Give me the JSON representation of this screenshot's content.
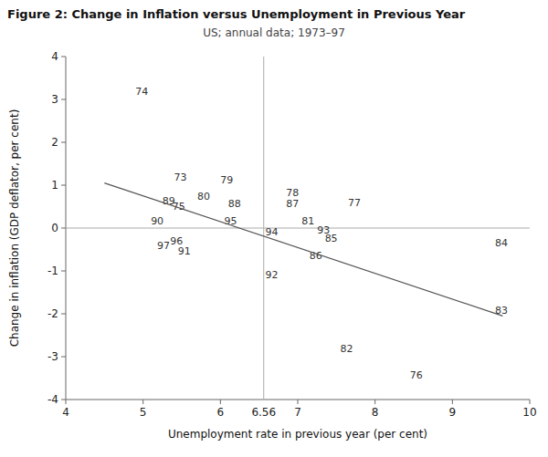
{
  "chart_data": {
    "type": "scatter",
    "title": "Figure 2: Change in Inflation versus Unemployment in Previous Year",
    "subtitle": "US; annual data; 1973–97",
    "x_label": "Unemployment rate in previous year (per cent)",
    "y_label": "Change in inflation (GDP deflator, per cent)",
    "xlim": [
      4,
      10
    ],
    "ylim": [
      -4,
      4
    ],
    "xticks": [
      4,
      5,
      6,
      7,
      8,
      9,
      10
    ],
    "yticks": [
      -4,
      -3,
      -2,
      -1,
      0,
      1,
      2,
      3,
      4
    ],
    "reference_lines": {
      "x": 6.56,
      "y": 0,
      "color": "#aaaaaa"
    },
    "series": [
      {
        "type": "text",
        "color": "#333333",
        "labels": [
          "74",
          "73",
          "79",
          "89",
          "75",
          "80",
          "88",
          "90",
          "95",
          "97",
          "96",
          "91",
          "78",
          "87",
          "77",
          "81",
          "93",
          "94",
          "85",
          "86",
          "92",
          "84",
          "83",
          "82",
          "76"
        ],
        "x": [
          4.9,
          5.4,
          6.0,
          5.25,
          5.38,
          5.7,
          6.1,
          5.1,
          6.05,
          5.18,
          5.35,
          5.45,
          6.85,
          6.85,
          7.65,
          7.05,
          7.25,
          6.58,
          7.35,
          7.15,
          6.58,
          9.55,
          9.55,
          7.55,
          8.45
        ],
        "values": [
          3.1,
          1.1,
          1.05,
          0.55,
          0.42,
          0.65,
          0.48,
          0.08,
          0.08,
          -0.48,
          -0.38,
          -0.62,
          0.75,
          0.48,
          0.52,
          0.08,
          -0.12,
          -0.18,
          -0.32,
          -0.72,
          -1.18,
          -0.42,
          -2.0,
          -2.9,
          -3.52
        ]
      },
      {
        "type": "line",
        "color": "#555555",
        "x": [
          4.5,
          9.65
        ],
        "values": [
          1.05,
          -2.05
        ]
      }
    ]
  }
}
